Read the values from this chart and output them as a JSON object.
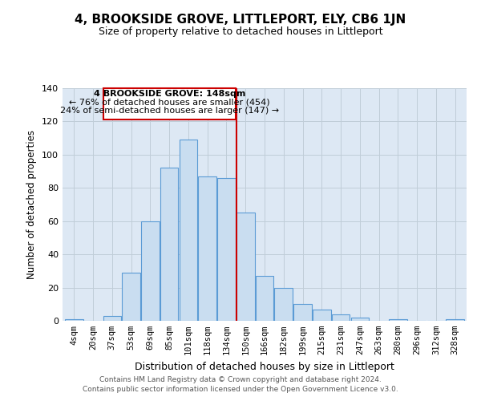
{
  "title": "4, BROOKSIDE GROVE, LITTLEPORT, ELY, CB6 1JN",
  "subtitle": "Size of property relative to detached houses in Littleport",
  "xlabel": "Distribution of detached houses by size in Littleport",
  "ylabel": "Number of detached properties",
  "bar_labels": [
    "4sqm",
    "20sqm",
    "37sqm",
    "53sqm",
    "69sqm",
    "85sqm",
    "101sqm",
    "118sqm",
    "134sqm",
    "150sqm",
    "166sqm",
    "182sqm",
    "199sqm",
    "215sqm",
    "231sqm",
    "247sqm",
    "263sqm",
    "280sqm",
    "296sqm",
    "312sqm",
    "328sqm"
  ],
  "bar_heights": [
    1,
    0,
    3,
    29,
    60,
    92,
    109,
    87,
    86,
    65,
    27,
    20,
    10,
    7,
    4,
    2,
    0,
    1,
    0,
    0,
    1
  ],
  "bar_color": "#c9ddf0",
  "bar_edge_color": "#5b9bd5",
  "annotation_title": "4 BROOKSIDE GROVE: 148sqm",
  "annotation_line1": "← 76% of detached houses are smaller (454)",
  "annotation_line2": "24% of semi-detached houses are larger (147) →",
  "vline_color": "#cc0000",
  "vline_index": 9,
  "footer1": "Contains HM Land Registry data © Crown copyright and database right 2024.",
  "footer2": "Contains public sector information licensed under the Open Government Licence v3.0.",
  "ylim": [
    0,
    140
  ],
  "background_color": "#dde8f4",
  "plot_background": "#ffffff",
  "grid_color": "#c0cdd8",
  "title_fontsize": 11,
  "subtitle_fontsize": 9
}
